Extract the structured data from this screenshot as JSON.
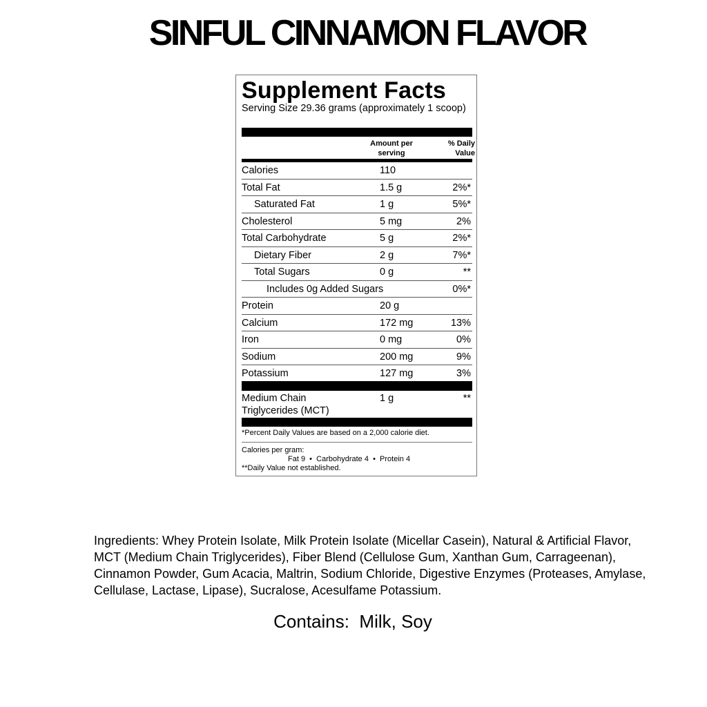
{
  "title": "SINFUL CINNAMON FLAVOR",
  "facts": {
    "heading": "Supplement Facts",
    "serving_size": "Serving Size  29.36 grams (approximately 1 scoop)",
    "col_amount": "Amount per serving",
    "col_dv": "% Daily Value",
    "rows": [
      {
        "name": "Calories",
        "amount": "110",
        "dv": "",
        "indent": 0
      },
      {
        "name": "Total Fat",
        "amount": "1.5 g",
        "dv": "2%*",
        "indent": 0
      },
      {
        "name": "Saturated Fat",
        "amount": "1 g",
        "dv": "5%*",
        "indent": 1
      },
      {
        "name": "Cholesterol",
        "amount": "5 mg",
        "dv": "2%",
        "indent": 0
      },
      {
        "name": "Total Carbohydrate",
        "amount": "5 g",
        "dv": "2%*",
        "indent": 0
      },
      {
        "name": "Dietary Fiber",
        "amount": "2 g",
        "dv": "7%*",
        "indent": 1
      },
      {
        "name": "Total Sugars",
        "amount": "0 g",
        "dv": "**",
        "indent": 1
      },
      {
        "name": "Includes 0g Added Sugars",
        "amount": "",
        "dv": "0%*",
        "indent": 2
      },
      {
        "name": "Protein",
        "amount": "20 g",
        "dv": "",
        "indent": 0
      },
      {
        "name": "Calcium",
        "amount": "172 mg",
        "dv": "13%",
        "indent": 0
      },
      {
        "name": "Iron",
        "amount": "0 mg",
        "dv": "0%",
        "indent": 0
      },
      {
        "name": "Sodium",
        "amount": "200 mg",
        "dv": "9%",
        "indent": 0
      },
      {
        "name": "Potassium",
        "amount": "127 mg",
        "dv": "3%",
        "indent": 0
      }
    ],
    "mct": {
      "name": "Medium Chain Triglycerides (MCT)",
      "amount": "1 g",
      "dv": "**"
    },
    "footnote": "*Percent Daily Values are based on a 2,000 calorie diet.",
    "cal_per_gram_label": "Calories per gram:",
    "cal_per_gram": "Fat 9  •  Carbohydrate 4  •  Protein 4",
    "dv_note": "**Daily Value not established."
  },
  "ingredients": "Ingredients: Whey Protein Isolate, Milk Protein Isolate (Micellar Casein), Natural & Artificial Flavor, MCT (Medium Chain Triglycerides), Fiber Blend (Cellulose Gum, Xanthan Gum, Carrageenan), Cinnamon Powder, Gum Acacia, Maltrin, Sodium Chloride, Digestive Enzymes (Proteases, Amylase, Cellulase, Lactase, Lipase), Sucralose, Acesulfame Potassium.",
  "contains": "Contains:  Milk, Soy"
}
